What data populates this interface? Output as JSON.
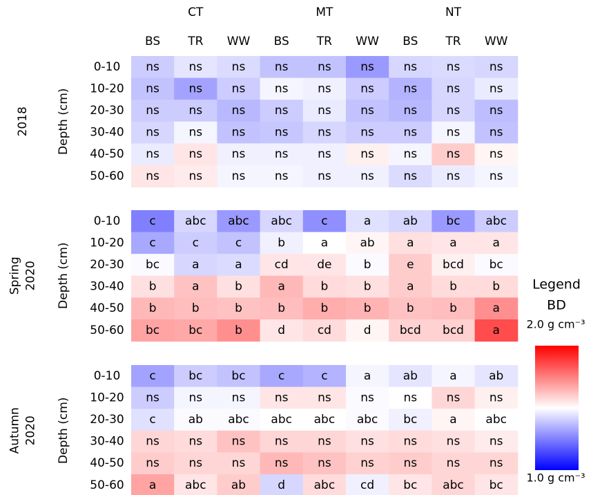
{
  "chart_data": {
    "type": "heatmap",
    "groups": [
      "CT",
      "MT",
      "NT"
    ],
    "columns": [
      "BS",
      "TR",
      "WW",
      "BS",
      "TR",
      "WW",
      "BS",
      "TR",
      "WW"
    ],
    "rows": [
      "0-10",
      "10-20",
      "20-30",
      "30-40",
      "40-50",
      "50-60"
    ],
    "ylabel": "Depth (cm)",
    "panels": [
      {
        "title": [
          "2018"
        ],
        "values": [
          [
            1.4,
            1.45,
            1.43,
            1.38,
            1.38,
            1.3,
            1.42,
            1.43,
            1.42
          ],
          [
            1.38,
            1.32,
            1.4,
            1.48,
            1.47,
            1.4,
            1.35,
            1.42,
            1.46
          ],
          [
            1.4,
            1.4,
            1.36,
            1.4,
            1.46,
            1.38,
            1.36,
            1.42,
            1.37
          ],
          [
            1.42,
            1.48,
            1.38,
            1.39,
            1.42,
            1.4,
            1.4,
            1.48,
            1.38
          ],
          [
            1.46,
            1.55,
            1.47,
            1.47,
            1.47,
            1.53,
            1.48,
            1.6,
            1.52
          ],
          [
            1.55,
            1.54,
            1.48,
            1.48,
            1.47,
            1.47,
            1.43,
            1.46,
            1.48
          ]
        ],
        "labels": [
          [
            "ns",
            "ns",
            "ns",
            "ns",
            "ns",
            "ns",
            "ns",
            "ns",
            "ns"
          ],
          [
            "ns",
            "ns",
            "ns",
            "ns",
            "ns",
            "ns",
            "ns",
            "ns",
            "ns"
          ],
          [
            "ns",
            "ns",
            "ns",
            "ns",
            "ns",
            "ns",
            "ns",
            "ns",
            "ns"
          ],
          [
            "ns",
            "ns",
            "ns",
            "ns",
            "ns",
            "ns",
            "ns",
            "ns",
            "ns"
          ],
          [
            "ns",
            "ns",
            "ns",
            "ns",
            "ns",
            "ns",
            "ns",
            "ns",
            "ns"
          ],
          [
            "ns",
            "ns",
            "ns",
            "ns",
            "ns",
            "ns",
            "ns",
            "ns",
            "ns"
          ]
        ]
      },
      {
        "title": [
          "Spring",
          "2020"
        ],
        "values": [
          [
            1.25,
            1.42,
            1.3,
            1.42,
            1.28,
            1.44,
            1.42,
            1.3,
            1.4
          ],
          [
            1.33,
            1.4,
            1.38,
            1.47,
            1.5,
            1.52,
            1.56,
            1.55,
            1.55
          ],
          [
            1.49,
            1.42,
            1.43,
            1.55,
            1.55,
            1.49,
            1.6,
            1.53,
            1.49
          ],
          [
            1.56,
            1.62,
            1.56,
            1.64,
            1.57,
            1.56,
            1.6,
            1.57,
            1.57
          ],
          [
            1.64,
            1.63,
            1.62,
            1.63,
            1.66,
            1.65,
            1.62,
            1.63,
            1.72
          ],
          [
            1.68,
            1.67,
            1.72,
            1.55,
            1.57,
            1.52,
            1.59,
            1.59,
            1.85
          ]
        ],
        "labels": [
          [
            "c",
            "abc",
            "abc",
            "abc",
            "c",
            "a",
            "ab",
            "bc",
            "abc"
          ],
          [
            "c",
            "c",
            "c",
            "b",
            "a",
            "ab",
            "a",
            "a",
            "a"
          ],
          [
            "bc",
            "a",
            "a",
            "cd",
            "de",
            "b",
            "e",
            "bcd",
            "bc"
          ],
          [
            "b",
            "a",
            "b",
            "a",
            "b",
            "b",
            "a",
            "b",
            "b"
          ],
          [
            "b",
            "b",
            "b",
            "b",
            "b",
            "b",
            "b",
            "b",
            "a"
          ],
          [
            "bc",
            "bc",
            "b",
            "d",
            "cd",
            "d",
            "bcd",
            "bcd",
            "a"
          ]
        ]
      },
      {
        "title": [
          "Autumn",
          "2020"
        ],
        "values": [
          [
            1.32,
            1.4,
            1.38,
            1.33,
            1.35,
            1.48,
            1.45,
            1.48,
            1.45
          ],
          [
            1.4,
            1.48,
            1.48,
            1.55,
            1.55,
            1.49,
            1.5,
            1.58,
            1.53
          ],
          [
            1.44,
            1.49,
            1.49,
            1.5,
            1.5,
            1.49,
            1.47,
            1.52,
            1.5
          ],
          [
            1.58,
            1.57,
            1.62,
            1.58,
            1.58,
            1.56,
            1.57,
            1.56,
            1.54
          ],
          [
            1.6,
            1.58,
            1.58,
            1.64,
            1.62,
            1.59,
            1.6,
            1.58,
            1.58
          ],
          [
            1.68,
            1.55,
            1.6,
            1.42,
            1.57,
            1.47,
            1.55,
            1.58,
            1.55
          ]
        ],
        "labels": [
          [
            "c",
            "bc",
            "bc",
            "c",
            "c",
            "a",
            "ab",
            "a",
            "ab"
          ],
          [
            "ns",
            "ns",
            "ns",
            "ns",
            "ns",
            "ns",
            "ns",
            "ns",
            "ns"
          ],
          [
            "c",
            "ab",
            "abc",
            "abc",
            "abc",
            "abc",
            "bc",
            "a",
            "abc"
          ],
          [
            "ns",
            "ns",
            "ns",
            "ns",
            "ns",
            "ns",
            "ns",
            "ns",
            "ns"
          ],
          [
            "ns",
            "ns",
            "ns",
            "ns",
            "ns",
            "ns",
            "ns",
            "ns",
            "ns"
          ],
          [
            "a",
            "abc",
            "ab",
            "d",
            "abc",
            "cd",
            "bc",
            "abc",
            "bc"
          ]
        ]
      }
    ],
    "legend": {
      "title": "Legend",
      "name": "BD",
      "colors": [
        "#0000ff",
        "#ffffff",
        "#ff0000"
      ]
    },
    "zlim": [
      1.0,
      2.0
    ],
    "zticks": [
      {
        "value": 1.0,
        "label": "1.0 g cm⁻³"
      },
      {
        "value": 2.0,
        "label": "2.0 g cm⁻³"
      }
    ]
  }
}
